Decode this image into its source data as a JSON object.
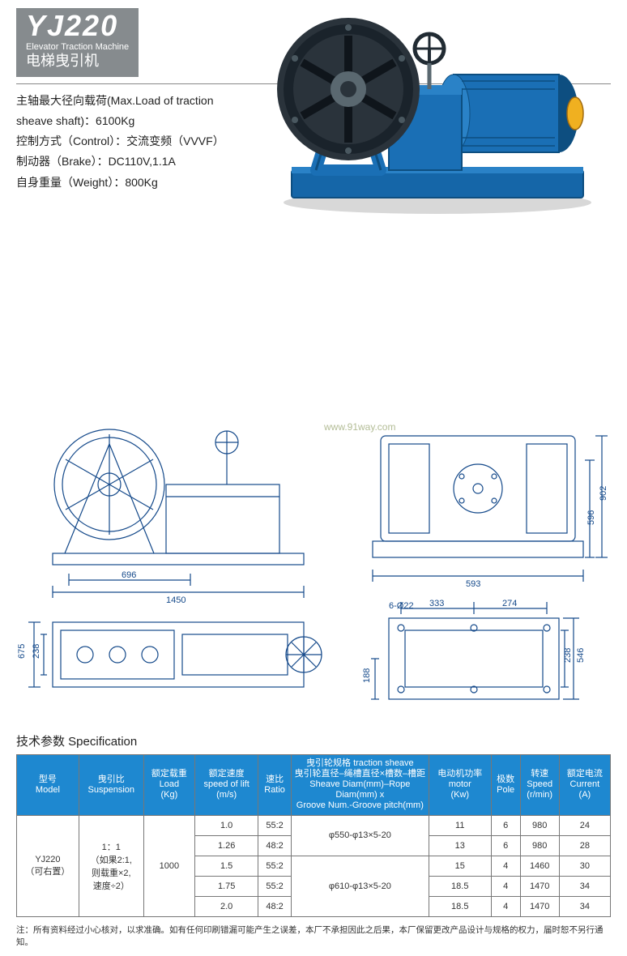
{
  "header": {
    "model": "YJ220",
    "subtitle_en": "Elevator Traction Machine",
    "subtitle_cn": "电梯曳引机"
  },
  "key_specs": {
    "line1": "主轴最大径向载荷(Max.Load of traction",
    "line2": "sheave shaft)：6100Kg",
    "line3": "控制方式（Control）：交流变频（VVVF）",
    "line4": "制动器（Brake）：DC110V,1.1A",
    "line5": "自身重量（Weight）：800Kg"
  },
  "product_colors": {
    "body": "#1a6fb5",
    "body_dark": "#0d4e80",
    "wheel": "#212b33",
    "base": "#1566a8",
    "cap_yellow": "#f0b020",
    "shadow": "#5a6870"
  },
  "diagram": {
    "stroke": "#14498a",
    "dims": {
      "w1": "696",
      "w2": "1450",
      "w3": "593",
      "h1": "902",
      "h2": "596",
      "tv_w": "675",
      "tv_h": "238",
      "base_w1": "333",
      "base_w2": "274",
      "base_h1": "546",
      "base_h2": "238",
      "base_h3": "188",
      "holes": "6-Ø22"
    }
  },
  "watermark": "www.91way.com",
  "spec_section": {
    "title": "技术参数 Specification",
    "headers": {
      "model": "型号\nModel",
      "suspension": "曳引比\nSuspension",
      "load": "额定载重\nLoad\n(Kg)",
      "speed": "额定速度\nspeed of lift\n(m/s)",
      "ratio": "速比\nRatio",
      "sheave": "曳引轮规格  traction sheave\n曳引轮直径–绳槽直径×槽数–槽距\nSheave Diam(mm)–Rope Diam(mm) x\nGroove Num.-Groove pitch(mm)",
      "motor": "电动机功率\nmotor\n(Kw)",
      "pole": "极数\nPole",
      "rpm": "转速\nSpeed\n(r/min)",
      "current": "额定电流\nCurrent\n(A)"
    },
    "model_cell": "YJ220\n（可右置）",
    "suspension_cell": "1：1\n（如果2:1,\n则载重×2,\n速度÷2）",
    "load_cell": "1000",
    "sheave_a": "φ550-φ13×5-20",
    "sheave_b": "φ610-φ13×5-20",
    "rows": [
      {
        "speed": "1.0",
        "ratio": "55:2",
        "motor": "11",
        "pole": "6",
        "rpm": "980",
        "current": "24"
      },
      {
        "speed": "1.26",
        "ratio": "48:2",
        "motor": "13",
        "pole": "6",
        "rpm": "980",
        "current": "28"
      },
      {
        "speed": "1.5",
        "ratio": "55:2",
        "motor": "15",
        "pole": "4",
        "rpm": "1460",
        "current": "30"
      },
      {
        "speed": "1.75",
        "ratio": "55:2",
        "motor": "18.5",
        "pole": "4",
        "rpm": "1470",
        "current": "34"
      },
      {
        "speed": "2.0",
        "ratio": "48:2",
        "motor": "18.5",
        "pole": "4",
        "rpm": "1470",
        "current": "34"
      }
    ]
  },
  "footnote": "注：所有资料经过小心核对，以求准确。如有任何印刷错漏可能产生之误差，本厂不承担因此之后果，本厂保留更改产品设计与规格的权力，届时恕不另行通知。"
}
